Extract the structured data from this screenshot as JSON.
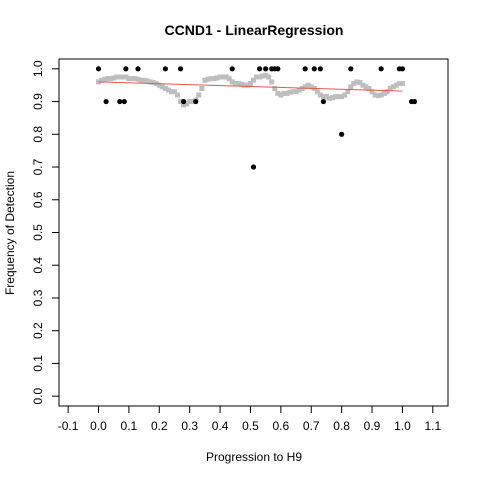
{
  "chart_data": {
    "type": "scatter",
    "title": "CCND1 - LinearRegression",
    "xlabel": "Progression to H9",
    "ylabel": "Frequency of Detection",
    "xlim": [
      -0.13,
      1.15
    ],
    "ylim": [
      -0.03,
      1.03
    ],
    "xticks": [
      "-0.1",
      "0.0",
      "0.1",
      "0.2",
      "0.3",
      "0.4",
      "0.5",
      "0.6",
      "0.7",
      "0.8",
      "0.9",
      "1.0",
      "1.1"
    ],
    "yticks": [
      "0.0",
      "0.1",
      "0.2",
      "0.3",
      "0.4",
      "0.5",
      "0.6",
      "0.7",
      "0.8",
      "0.9",
      "1.0"
    ],
    "grid": false,
    "colors": {
      "observed": "#000000",
      "smoothed": "#bebebe",
      "fit": "#e8574a"
    },
    "series": [
      {
        "kind": "observed",
        "x": [
          0.0,
          0.025,
          0.07,
          0.085,
          0.09,
          0.13,
          0.22,
          0.27,
          0.28,
          0.32,
          0.44,
          0.51,
          0.53,
          0.55,
          0.57,
          0.58,
          0.59,
          0.68,
          0.71,
          0.73,
          0.74,
          0.8,
          0.83,
          0.93,
          0.99,
          1.0,
          1.03,
          1.04
        ],
        "y": [
          1.0,
          0.9,
          0.9,
          0.9,
          1.0,
          1.0,
          1.0,
          1.0,
          0.9,
          0.9,
          1.0,
          0.7,
          1.0,
          1.0,
          1.0,
          1.0,
          1.0,
          1.0,
          1.0,
          1.0,
          0.9,
          0.8,
          1.0,
          1.0,
          1.0,
          1.0,
          0.9,
          0.9
        ]
      },
      {
        "kind": "smoothed",
        "x": [
          0.0,
          0.01,
          0.02,
          0.03,
          0.04,
          0.05,
          0.06,
          0.07,
          0.08,
          0.09,
          0.1,
          0.11,
          0.12,
          0.13,
          0.14,
          0.15,
          0.16,
          0.17,
          0.18,
          0.19,
          0.2,
          0.21,
          0.22,
          0.23,
          0.24,
          0.25,
          0.26,
          0.27,
          0.28,
          0.29,
          0.3,
          0.31,
          0.32,
          0.33,
          0.34,
          0.35,
          0.36,
          0.37,
          0.38,
          0.39,
          0.4,
          0.41,
          0.42,
          0.43,
          0.44,
          0.45,
          0.46,
          0.47,
          0.48,
          0.49,
          0.5,
          0.51,
          0.52,
          0.53,
          0.54,
          0.55,
          0.56,
          0.57,
          0.58,
          0.59,
          0.6,
          0.61,
          0.62,
          0.63,
          0.64,
          0.65,
          0.66,
          0.67,
          0.68,
          0.69,
          0.7,
          0.71,
          0.72,
          0.73,
          0.74,
          0.75,
          0.76,
          0.77,
          0.78,
          0.79,
          0.8,
          0.81,
          0.82,
          0.83,
          0.84,
          0.85,
          0.86,
          0.87,
          0.88,
          0.89,
          0.9,
          0.91,
          0.92,
          0.93,
          0.94,
          0.95,
          0.96,
          0.97,
          0.98,
          0.99,
          1.0
        ],
        "y": [
          0.96,
          0.965,
          0.968,
          0.97,
          0.97,
          0.972,
          0.975,
          0.975,
          0.975,
          0.975,
          0.97,
          0.97,
          0.97,
          0.968,
          0.965,
          0.965,
          0.963,
          0.96,
          0.958,
          0.955,
          0.95,
          0.945,
          0.94,
          0.935,
          0.93,
          0.93,
          0.92,
          0.9,
          0.89,
          0.893,
          0.9,
          0.9,
          0.905,
          0.92,
          0.94,
          0.965,
          0.968,
          0.97,
          0.97,
          0.972,
          0.975,
          0.975,
          0.975,
          0.97,
          0.96,
          0.955,
          0.955,
          0.953,
          0.95,
          0.95,
          0.955,
          0.965,
          0.975,
          0.975,
          0.978,
          0.98,
          0.975,
          0.96,
          0.94,
          0.925,
          0.92,
          0.925,
          0.925,
          0.928,
          0.93,
          0.93,
          0.935,
          0.94,
          0.945,
          0.95,
          0.945,
          0.94,
          0.93,
          0.92,
          0.915,
          0.915,
          0.91,
          0.912,
          0.915,
          0.915,
          0.915,
          0.92,
          0.93,
          0.945,
          0.955,
          0.96,
          0.958,
          0.95,
          0.945,
          0.94,
          0.93,
          0.92,
          0.918,
          0.92,
          0.925,
          0.93,
          0.94,
          0.945,
          0.95,
          0.955,
          0.955
        ]
      },
      {
        "kind": "fit",
        "x": [
          0.0,
          1.0
        ],
        "y": [
          0.96,
          0.932
        ]
      }
    ]
  }
}
